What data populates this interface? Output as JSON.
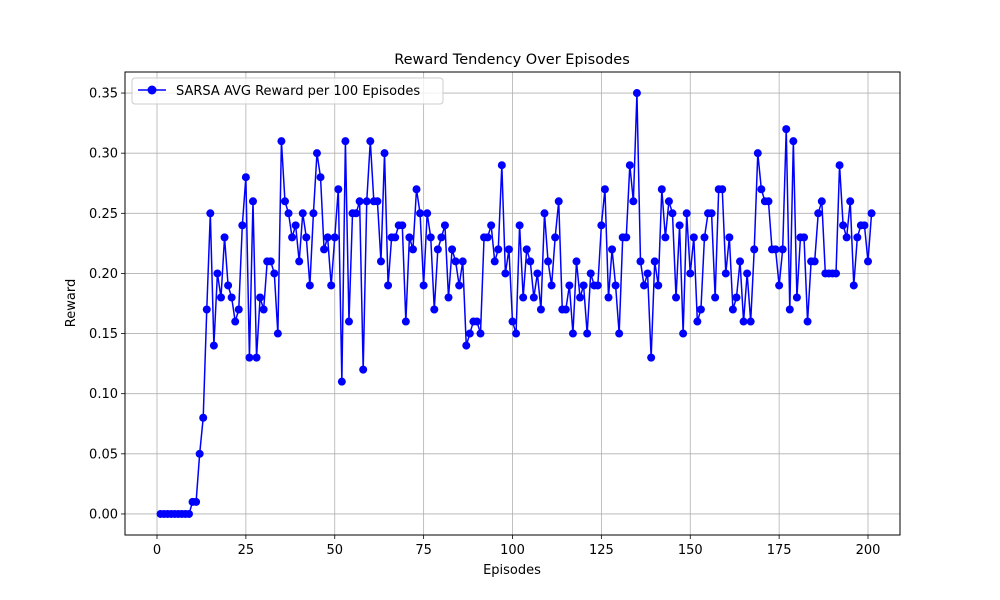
{
  "chart_data": {
    "type": "line",
    "title": "Reward Tendency Over Episodes",
    "xlabel": "Episodes",
    "ylabel": "Reward",
    "xlim": [
      -9,
      209
    ],
    "ylim": [
      -0.0175,
      0.3675
    ],
    "x_ticks": [
      0,
      25,
      50,
      75,
      100,
      125,
      150,
      175,
      200
    ],
    "x_tick_labels": [
      "0",
      "25",
      "50",
      "75",
      "100",
      "125",
      "150",
      "175",
      "200"
    ],
    "y_ticks": [
      0.0,
      0.05,
      0.1,
      0.15,
      0.2,
      0.25,
      0.3,
      0.35
    ],
    "y_tick_labels": [
      "0.00",
      "0.05",
      "0.10",
      "0.15",
      "0.20",
      "0.25",
      "0.30",
      "0.35"
    ],
    "grid": true,
    "legend_position": "top-left",
    "series": [
      {
        "name": "SARSA AVG Reward per 100 Episodes",
        "color": "#0000ff",
        "marker": "circle",
        "x_start": 1,
        "x_step": 1,
        "values": [
          0,
          0,
          0,
          0,
          0,
          0,
          0,
          0,
          0,
          0.01,
          0.01,
          0.05,
          0.08,
          0.17,
          0.25,
          0.14,
          0.2,
          0.18,
          0.23,
          0.19,
          0.18,
          0.16,
          0.17,
          0.24,
          0.28,
          0.13,
          0.26,
          0.13,
          0.18,
          0.17,
          0.21,
          0.21,
          0.2,
          0.15,
          0.31,
          0.26,
          0.25,
          0.23,
          0.24,
          0.21,
          0.25,
          0.23,
          0.19,
          0.25,
          0.3,
          0.28,
          0.22,
          0.23,
          0.19,
          0.23,
          0.27,
          0.11,
          0.31,
          0.16,
          0.25,
          0.25,
          0.26,
          0.12,
          0.26,
          0.31,
          0.26,
          0.26,
          0.21,
          0.3,
          0.19,
          0.23,
          0.23,
          0.24,
          0.24,
          0.16,
          0.23,
          0.22,
          0.27,
          0.25,
          0.19,
          0.25,
          0.23,
          0.17,
          0.22,
          0.23,
          0.24,
          0.18,
          0.22,
          0.21,
          0.19,
          0.21,
          0.14,
          0.15,
          0.16,
          0.16,
          0.15,
          0.23,
          0.23,
          0.24,
          0.21,
          0.22,
          0.29,
          0.2,
          0.22,
          0.16,
          0.15,
          0.24,
          0.18,
          0.22,
          0.21,
          0.18,
          0.2,
          0.17,
          0.25,
          0.21,
          0.19,
          0.23,
          0.26,
          0.17,
          0.17,
          0.19,
          0.15,
          0.21,
          0.18,
          0.19,
          0.15,
          0.2,
          0.19,
          0.19,
          0.24,
          0.27,
          0.18,
          0.22,
          0.19,
          0.15,
          0.23,
          0.23,
          0.29,
          0.26,
          0.35,
          0.21,
          0.19,
          0.2,
          0.13,
          0.21,
          0.19,
          0.27,
          0.23,
          0.26,
          0.25,
          0.18,
          0.24,
          0.15,
          0.25,
          0.2,
          0.23,
          0.16,
          0.17,
          0.23,
          0.25,
          0.25,
          0.18,
          0.27,
          0.27,
          0.2,
          0.23,
          0.17,
          0.18,
          0.21,
          0.16,
          0.2,
          0.16,
          0.22,
          0.3,
          0.27,
          0.26,
          0.26,
          0.22,
          0.22,
          0.19,
          0.22,
          0.32,
          0.17,
          0.31,
          0.18,
          0.23,
          0.23,
          0.16,
          0.21,
          0.21,
          0.25,
          0.26,
          0.2,
          0.2,
          0.2,
          0.2,
          0.29,
          0.24,
          0.23,
          0.26,
          0.19,
          0.23,
          0.24,
          0.24,
          0.21,
          0.25
        ]
      }
    ]
  }
}
